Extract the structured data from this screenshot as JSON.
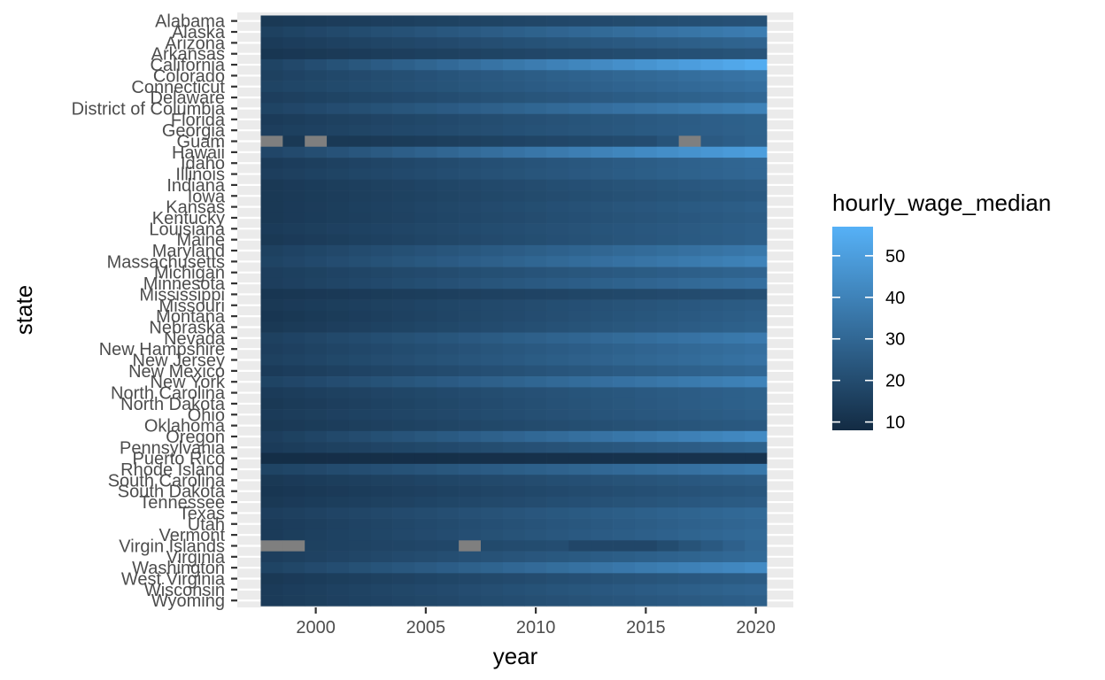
{
  "chart_data": {
    "type": "heatmap",
    "xlabel": "year",
    "ylabel": "state",
    "x_ticks": [
      2000,
      2005,
      2010,
      2015,
      2020
    ],
    "years": [
      1998,
      1999,
      2000,
      2001,
      2002,
      2003,
      2004,
      2005,
      2006,
      2007,
      2008,
      2009,
      2010,
      2011,
      2012,
      2013,
      2014,
      2015,
      2016,
      2017,
      2018,
      2019,
      2020
    ],
    "legend": {
      "title": "hourly_wage_median",
      "ticks": [
        10,
        20,
        30,
        40,
        50
      ],
      "min": 8,
      "max": 57,
      "low_color": "#132B43",
      "high_color": "#56B1F7",
      "na_color": "#7F7F7F"
    },
    "states": [
      {
        "name": "Alabama",
        "start": 13,
        "end": 22,
        "pattern": "normal"
      },
      {
        "name": "Alaska",
        "start": 16,
        "end": 38,
        "pattern": "normal"
      },
      {
        "name": "Arizona",
        "start": 14,
        "end": 29,
        "pattern": "normal"
      },
      {
        "name": "Arkansas",
        "start": 12,
        "end": 23,
        "pattern": "normal"
      },
      {
        "name": "California",
        "start": 17,
        "end": 55,
        "pattern": "normal"
      },
      {
        "name": "Colorado",
        "start": 16,
        "end": 35,
        "pattern": "normal"
      },
      {
        "name": "Connecticut",
        "start": 17,
        "end": 33,
        "pattern": "normal"
      },
      {
        "name": "Delaware",
        "start": 15,
        "end": 30,
        "pattern": "normal"
      },
      {
        "name": "District of Columbia",
        "start": 17,
        "end": 40,
        "pattern": "normal"
      },
      {
        "name": "Florida",
        "start": 14,
        "end": 28,
        "pattern": "normal"
      },
      {
        "name": "Georgia",
        "start": 15,
        "end": 28,
        "pattern": "normal"
      },
      {
        "name": "Guam",
        "start": 11,
        "end": 25,
        "pattern": "guam"
      },
      {
        "name": "Hawaii",
        "start": 18,
        "end": 50,
        "pattern": "normal"
      },
      {
        "name": "Idaho",
        "start": 14,
        "end": 30,
        "pattern": "normal"
      },
      {
        "name": "Illinois",
        "start": 15,
        "end": 30,
        "pattern": "normal"
      },
      {
        "name": "Indiana",
        "start": 13,
        "end": 26,
        "pattern": "normal"
      },
      {
        "name": "Iowa",
        "start": 13,
        "end": 25,
        "pattern": "normal"
      },
      {
        "name": "Kansas",
        "start": 13,
        "end": 27,
        "pattern": "normal"
      },
      {
        "name": "Kentucky",
        "start": 13,
        "end": 26,
        "pattern": "normal"
      },
      {
        "name": "Louisiana",
        "start": 14,
        "end": 27,
        "pattern": "normal"
      },
      {
        "name": "Maine",
        "start": 13,
        "end": 27,
        "pattern": "normal"
      },
      {
        "name": "Maryland",
        "start": 16,
        "end": 36,
        "pattern": "normal"
      },
      {
        "name": "Massachusetts",
        "start": 17,
        "end": 40,
        "pattern": "normal"
      },
      {
        "name": "Michigan",
        "start": 15,
        "end": 29,
        "pattern": "normal"
      },
      {
        "name": "Minnesota",
        "start": 15,
        "end": 33,
        "pattern": "normal"
      },
      {
        "name": "Mississippi",
        "start": 12,
        "end": 21,
        "pattern": "normal"
      },
      {
        "name": "Missouri",
        "start": 13,
        "end": 26,
        "pattern": "normal"
      },
      {
        "name": "Montana",
        "start": 12,
        "end": 27,
        "pattern": "normal"
      },
      {
        "name": "Nebraska",
        "start": 13,
        "end": 28,
        "pattern": "normal"
      },
      {
        "name": "Nevada",
        "start": 16,
        "end": 37,
        "pattern": "normal"
      },
      {
        "name": "New Hampshire",
        "start": 15,
        "end": 33,
        "pattern": "normal"
      },
      {
        "name": "New Jersey",
        "start": 16,
        "end": 34,
        "pattern": "normal"
      },
      {
        "name": "New Mexico",
        "start": 14,
        "end": 30,
        "pattern": "normal"
      },
      {
        "name": "New York",
        "start": 17,
        "end": 40,
        "pattern": "normal"
      },
      {
        "name": "North Carolina",
        "start": 14,
        "end": 28,
        "pattern": "normal"
      },
      {
        "name": "North Dakota",
        "start": 13,
        "end": 28,
        "pattern": "normal"
      },
      {
        "name": "Ohio",
        "start": 14,
        "end": 27,
        "pattern": "normal"
      },
      {
        "name": "Oklahoma",
        "start": 13,
        "end": 25,
        "pattern": "normal"
      },
      {
        "name": "Oregon",
        "start": 15,
        "end": 43,
        "pattern": "normal"
      },
      {
        "name": "Pennsylvania",
        "start": 14,
        "end": 28,
        "pattern": "normal"
      },
      {
        "name": "Puerto Rico",
        "start": 9,
        "end": 11,
        "pattern": "normal"
      },
      {
        "name": "Rhode Island",
        "start": 17,
        "end": 36,
        "pattern": "normal"
      },
      {
        "name": "South Carolina",
        "start": 13,
        "end": 26,
        "pattern": "normal"
      },
      {
        "name": "South Dakota",
        "start": 12,
        "end": 24,
        "pattern": "normal"
      },
      {
        "name": "Tennessee",
        "start": 13,
        "end": 26,
        "pattern": "normal"
      },
      {
        "name": "Texas",
        "start": 15,
        "end": 31,
        "pattern": "normal"
      },
      {
        "name": "Utah",
        "start": 14,
        "end": 30,
        "pattern": "normal"
      },
      {
        "name": "Vermont",
        "start": 14,
        "end": 31,
        "pattern": "normal"
      },
      {
        "name": "Virgin Islands",
        "start": 15,
        "end": 30,
        "pattern": "virgin"
      },
      {
        "name": "Virginia",
        "start": 15,
        "end": 31,
        "pattern": "normal"
      },
      {
        "name": "Washington",
        "start": 17,
        "end": 43,
        "pattern": "normal"
      },
      {
        "name": "West Virginia",
        "start": 13,
        "end": 26,
        "pattern": "normal"
      },
      {
        "name": "Wisconsin",
        "start": 14,
        "end": 29,
        "pattern": "normal"
      },
      {
        "name": "Wyoming",
        "start": 14,
        "end": 27,
        "pattern": "normal"
      }
    ]
  }
}
